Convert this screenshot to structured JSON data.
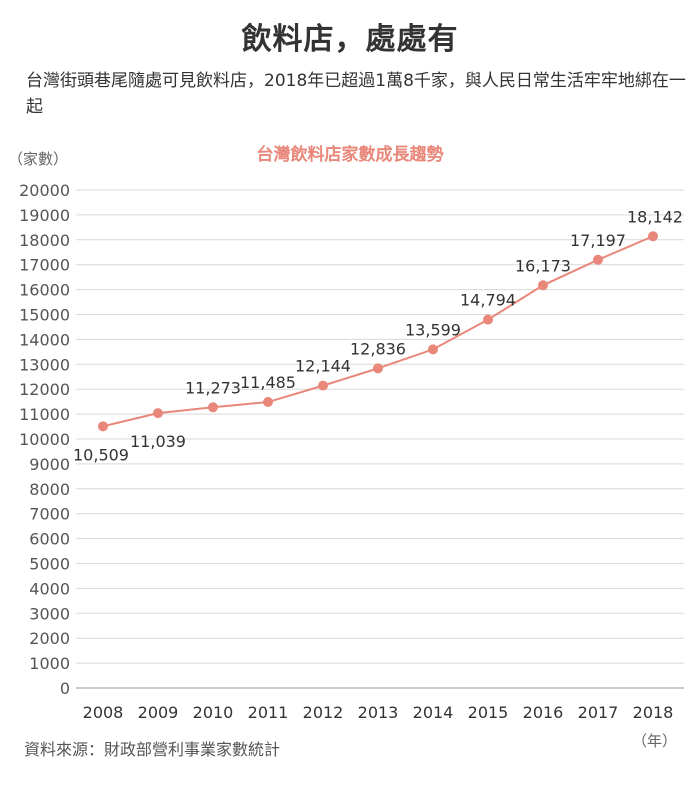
{
  "header": {
    "title": "飲料店，處處有",
    "subtitle": "台灣街頭巷尾隨處可見飲料店，2018年已超過1萬8千家，與人民日常生活牢牢地綁在一起"
  },
  "footer": {
    "source": "資料來源：財政部營利事業家數統計"
  },
  "colors": {
    "line": "#e8877a",
    "chart_title": "#e8877a",
    "grid": "#d9d9d9"
  },
  "chart_data": {
    "type": "line",
    "title": "台灣飲料店家數成長趨勢",
    "ylabel": "（家數）",
    "xlabel": "（年）",
    "x": [
      "2008",
      "2009",
      "2010",
      "2011",
      "2012",
      "2013",
      "2014",
      "2015",
      "2016",
      "2017",
      "2018"
    ],
    "series": [
      {
        "values": [
          10509,
          11039,
          11273,
          11485,
          12144,
          12836,
          13599,
          14794,
          16173,
          17197,
          18142
        ],
        "labels": [
          "10,509",
          "11,039",
          "11,273",
          "11,485",
          "12,144",
          "12,836",
          "13,599",
          "14,794",
          "16,173",
          "17,197",
          "18,142"
        ]
      }
    ],
    "ylim": [
      0,
      20000
    ],
    "yticks": [
      "0",
      "1000",
      "2000",
      "3000",
      "4000",
      "5000",
      "6000",
      "7000",
      "8000",
      "9000",
      "10000",
      "11000",
      "12000",
      "13000",
      "14000",
      "15000",
      "16000",
      "17000",
      "18000",
      "19000",
      "20000"
    ],
    "grid": true,
    "legend": "none"
  }
}
